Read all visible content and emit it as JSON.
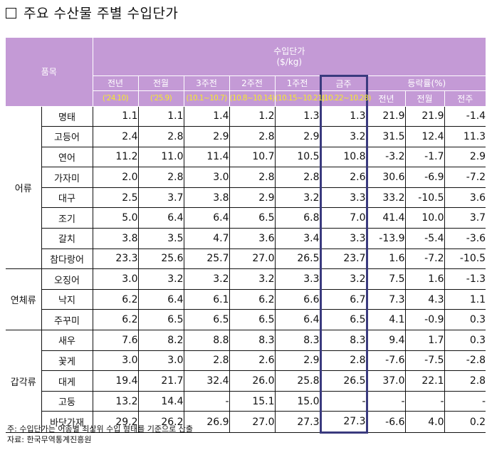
{
  "title": "주요 수산물 주별 수입단가",
  "header": {
    "item_col": "품목",
    "group_title_line1": "수입단가",
    "group_title_line2": "($/kg)",
    "periods": [
      {
        "label": "전년",
        "range": "('24.10)"
      },
      {
        "label": "전월",
        "range": "('25.9)"
      },
      {
        "label": "3주전",
        "range": "(10.1~10.7)"
      },
      {
        "label": "2주전",
        "range": "(10.8~10.14)"
      },
      {
        "label": "1주전",
        "range": "(10.15~10.21)"
      },
      {
        "label": "금주",
        "range": "(10.22~10.28)"
      }
    ],
    "change_title": "등락률(%)",
    "change_cols": [
      "전년",
      "전월",
      "전주"
    ]
  },
  "groups": [
    {
      "name": "어류",
      "rows": [
        {
          "item": "명태",
          "v": [
            "1.1",
            "1.1",
            "1.4",
            "1.2",
            "1.3",
            "1.3"
          ],
          "c": [
            "21.9",
            "21.9",
            "-1.4"
          ]
        },
        {
          "item": "고등어",
          "v": [
            "2.4",
            "2.8",
            "2.9",
            "2.8",
            "2.9",
            "3.2"
          ],
          "c": [
            "31.5",
            "12.4",
            "11.3"
          ]
        },
        {
          "item": "연어",
          "v": [
            "11.2",
            "11.0",
            "11.4",
            "10.7",
            "10.5",
            "10.8"
          ],
          "c": [
            "-3.2",
            "-1.7",
            "2.9"
          ]
        },
        {
          "item": "가자미",
          "v": [
            "2.0",
            "2.8",
            "3.0",
            "2.8",
            "2.8",
            "2.6"
          ],
          "c": [
            "30.6",
            "-6.9",
            "-7.2"
          ]
        },
        {
          "item": "대구",
          "v": [
            "2.5",
            "3.7",
            "3.8",
            "2.9",
            "3.2",
            "3.3"
          ],
          "c": [
            "33.2",
            "-10.5",
            "3.6"
          ]
        },
        {
          "item": "조기",
          "v": [
            "5.0",
            "6.4",
            "6.4",
            "6.5",
            "6.8",
            "7.0"
          ],
          "c": [
            "41.4",
            "10.0",
            "3.7"
          ]
        },
        {
          "item": "갈치",
          "v": [
            "3.8",
            "3.5",
            "4.7",
            "3.6",
            "3.4",
            "3.3"
          ],
          "c": [
            "-13.9",
            "-5.4",
            "-3.6"
          ]
        },
        {
          "item": "참다랑어",
          "v": [
            "23.3",
            "25.6",
            "25.7",
            "27.0",
            "26.5",
            "23.7"
          ],
          "c": [
            "1.6",
            "-7.2",
            "-10.5"
          ]
        }
      ]
    },
    {
      "name": "연체류",
      "rows": [
        {
          "item": "오징어",
          "v": [
            "3.0",
            "3.2",
            "3.2",
            "3.2",
            "3.3",
            "3.2"
          ],
          "c": [
            "7.5",
            "1.6",
            "-1.3"
          ]
        },
        {
          "item": "낙지",
          "v": [
            "6.2",
            "6.4",
            "6.1",
            "6.2",
            "6.6",
            "6.7"
          ],
          "c": [
            "7.3",
            "4.3",
            "1.1"
          ]
        },
        {
          "item": "주꾸미",
          "v": [
            "6.2",
            "6.5",
            "6.5",
            "6.5",
            "6.4",
            "6.5"
          ],
          "c": [
            "4.1",
            "-0.9",
            "0.3"
          ]
        }
      ]
    },
    {
      "name": "갑각류",
      "rows": [
        {
          "item": "새우",
          "v": [
            "7.6",
            "8.2",
            "8.8",
            "8.3",
            "8.3",
            "8.3"
          ],
          "c": [
            "9.4",
            "1.7",
            "0.3"
          ]
        },
        {
          "item": "꽃게",
          "v": [
            "3.0",
            "3.0",
            "2.8",
            "2.6",
            "2.9",
            "2.8"
          ],
          "c": [
            "-7.6",
            "-7.5",
            "-2.8"
          ]
        },
        {
          "item": "대게",
          "v": [
            "19.4",
            "21.7",
            "32.4",
            "26.0",
            "25.8",
            "26.5"
          ],
          "c": [
            "37.0",
            "22.1",
            "2.8"
          ]
        },
        {
          "item": "고둥",
          "v": [
            "13.2",
            "14.4",
            "-",
            "15.1",
            "15.0",
            "-"
          ],
          "c": [
            "-",
            "-",
            "-"
          ]
        },
        {
          "item": "바닷가재",
          "v": [
            "29.2",
            "26.2",
            "26.9",
            "27.0",
            "27.3",
            "27.3"
          ],
          "c": [
            "-6.6",
            "4.0",
            "0.2"
          ]
        }
      ]
    }
  ],
  "notes": {
    "note": "주: 수입단가는 어종별 최상위 수입 형태를 기준으로 산출",
    "source": "자료: 한국무역통계진흥원"
  },
  "colors": {
    "header_bg": "#c49ad6",
    "header_text": "#ffffff",
    "period_text": "#f5ea2a",
    "highlight_border": "#3a3a7e"
  }
}
